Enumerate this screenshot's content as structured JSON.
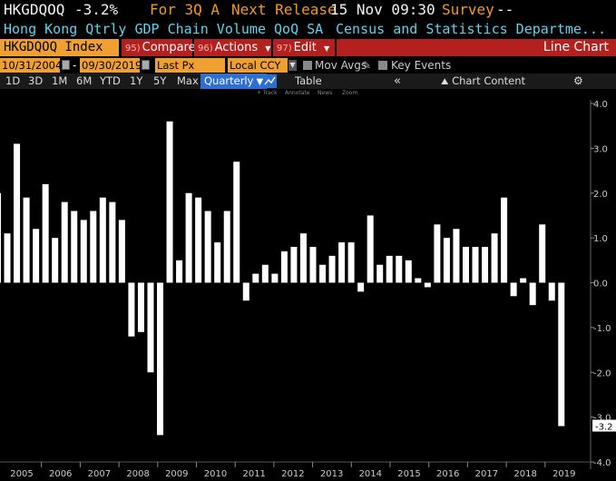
{
  "header": {
    "ticker": "HKGDQOQ",
    "last_value": "-3.2%",
    "period_label": "For 3Q A",
    "next_release_label": "Next Release",
    "next_release_value": "15 Nov 09:30",
    "survey_label": "Survey",
    "survey_value": "--"
  },
  "description": {
    "title": "Hong Kong Qtrly GDP Chain Volume QoQ SA",
    "source": "Census and Statistics Departme..."
  },
  "toolbar": {
    "security": "HKGDQOQ Index",
    "compare_num": "95)",
    "compare_label": "Compare",
    "actions_num": "96)",
    "actions_label": "Actions",
    "edit_num": "97)",
    "edit_label": "Edit",
    "chart_type": "Line Chart"
  },
  "range": {
    "start_date": "10/31/2004",
    "end_date": "09/30/2019",
    "price_field": "Last Px",
    "currency": "Local CCY",
    "mov_avgs_label": "Mov Avgs",
    "key_events_label": "Key Events"
  },
  "periods": {
    "buttons": [
      "1D",
      "3D",
      "1M",
      "6M",
      "YTD",
      "1Y",
      "5Y",
      "Max"
    ],
    "frequency": "Quarterly",
    "table_label": "Table",
    "chart_content_label": "Chart Content"
  },
  "annotation_bar": {
    "track": "+ Track",
    "annotate": "Annotate",
    "news": "News",
    "zoom": "Zoom"
  },
  "chart_data": {
    "type": "bar",
    "title": "",
    "xlabel": "",
    "ylabel": "",
    "ylim": [
      -4.0,
      4.0
    ],
    "y_ticks": [
      "4.0",
      "3.0",
      "2.0",
      "1.0",
      "0.0",
      "-1.0",
      "-2.0",
      "-3.0",
      "-4.0"
    ],
    "x_tick_labels": [
      "2005",
      "2006",
      "2007",
      "2008",
      "2009",
      "2010",
      "2011",
      "2012",
      "2013",
      "2014",
      "2015",
      "2016",
      "2017",
      "2018",
      "2019"
    ],
    "last_value_label": "-3.2",
    "grid": false,
    "bar_color": "#ffffff",
    "series": [
      {
        "values": [
          2.0,
          1.1,
          3.1,
          1.9,
          1.2,
          2.2,
          1.0,
          1.8,
          1.6,
          1.4,
          1.6,
          1.9,
          1.8,
          1.4,
          -1.2,
          -1.1,
          -2.0,
          -3.4,
          3.6,
          0.5,
          2.0,
          1.9,
          1.6,
          0.9,
          1.6,
          2.7,
          -0.4,
          0.2,
          0.4,
          0.2,
          0.7,
          0.8,
          1.1,
          0.8,
          0.4,
          0.6,
          0.9,
          0.9,
          -0.2,
          1.5,
          0.4,
          0.6,
          0.6,
          0.5,
          0.1,
          -0.1,
          1.3,
          1.0,
          1.2,
          0.8,
          0.8,
          0.8,
          1.1,
          1.9,
          -0.3,
          0.1,
          -0.5,
          1.3,
          -0.4,
          -3.2
        ]
      }
    ]
  }
}
